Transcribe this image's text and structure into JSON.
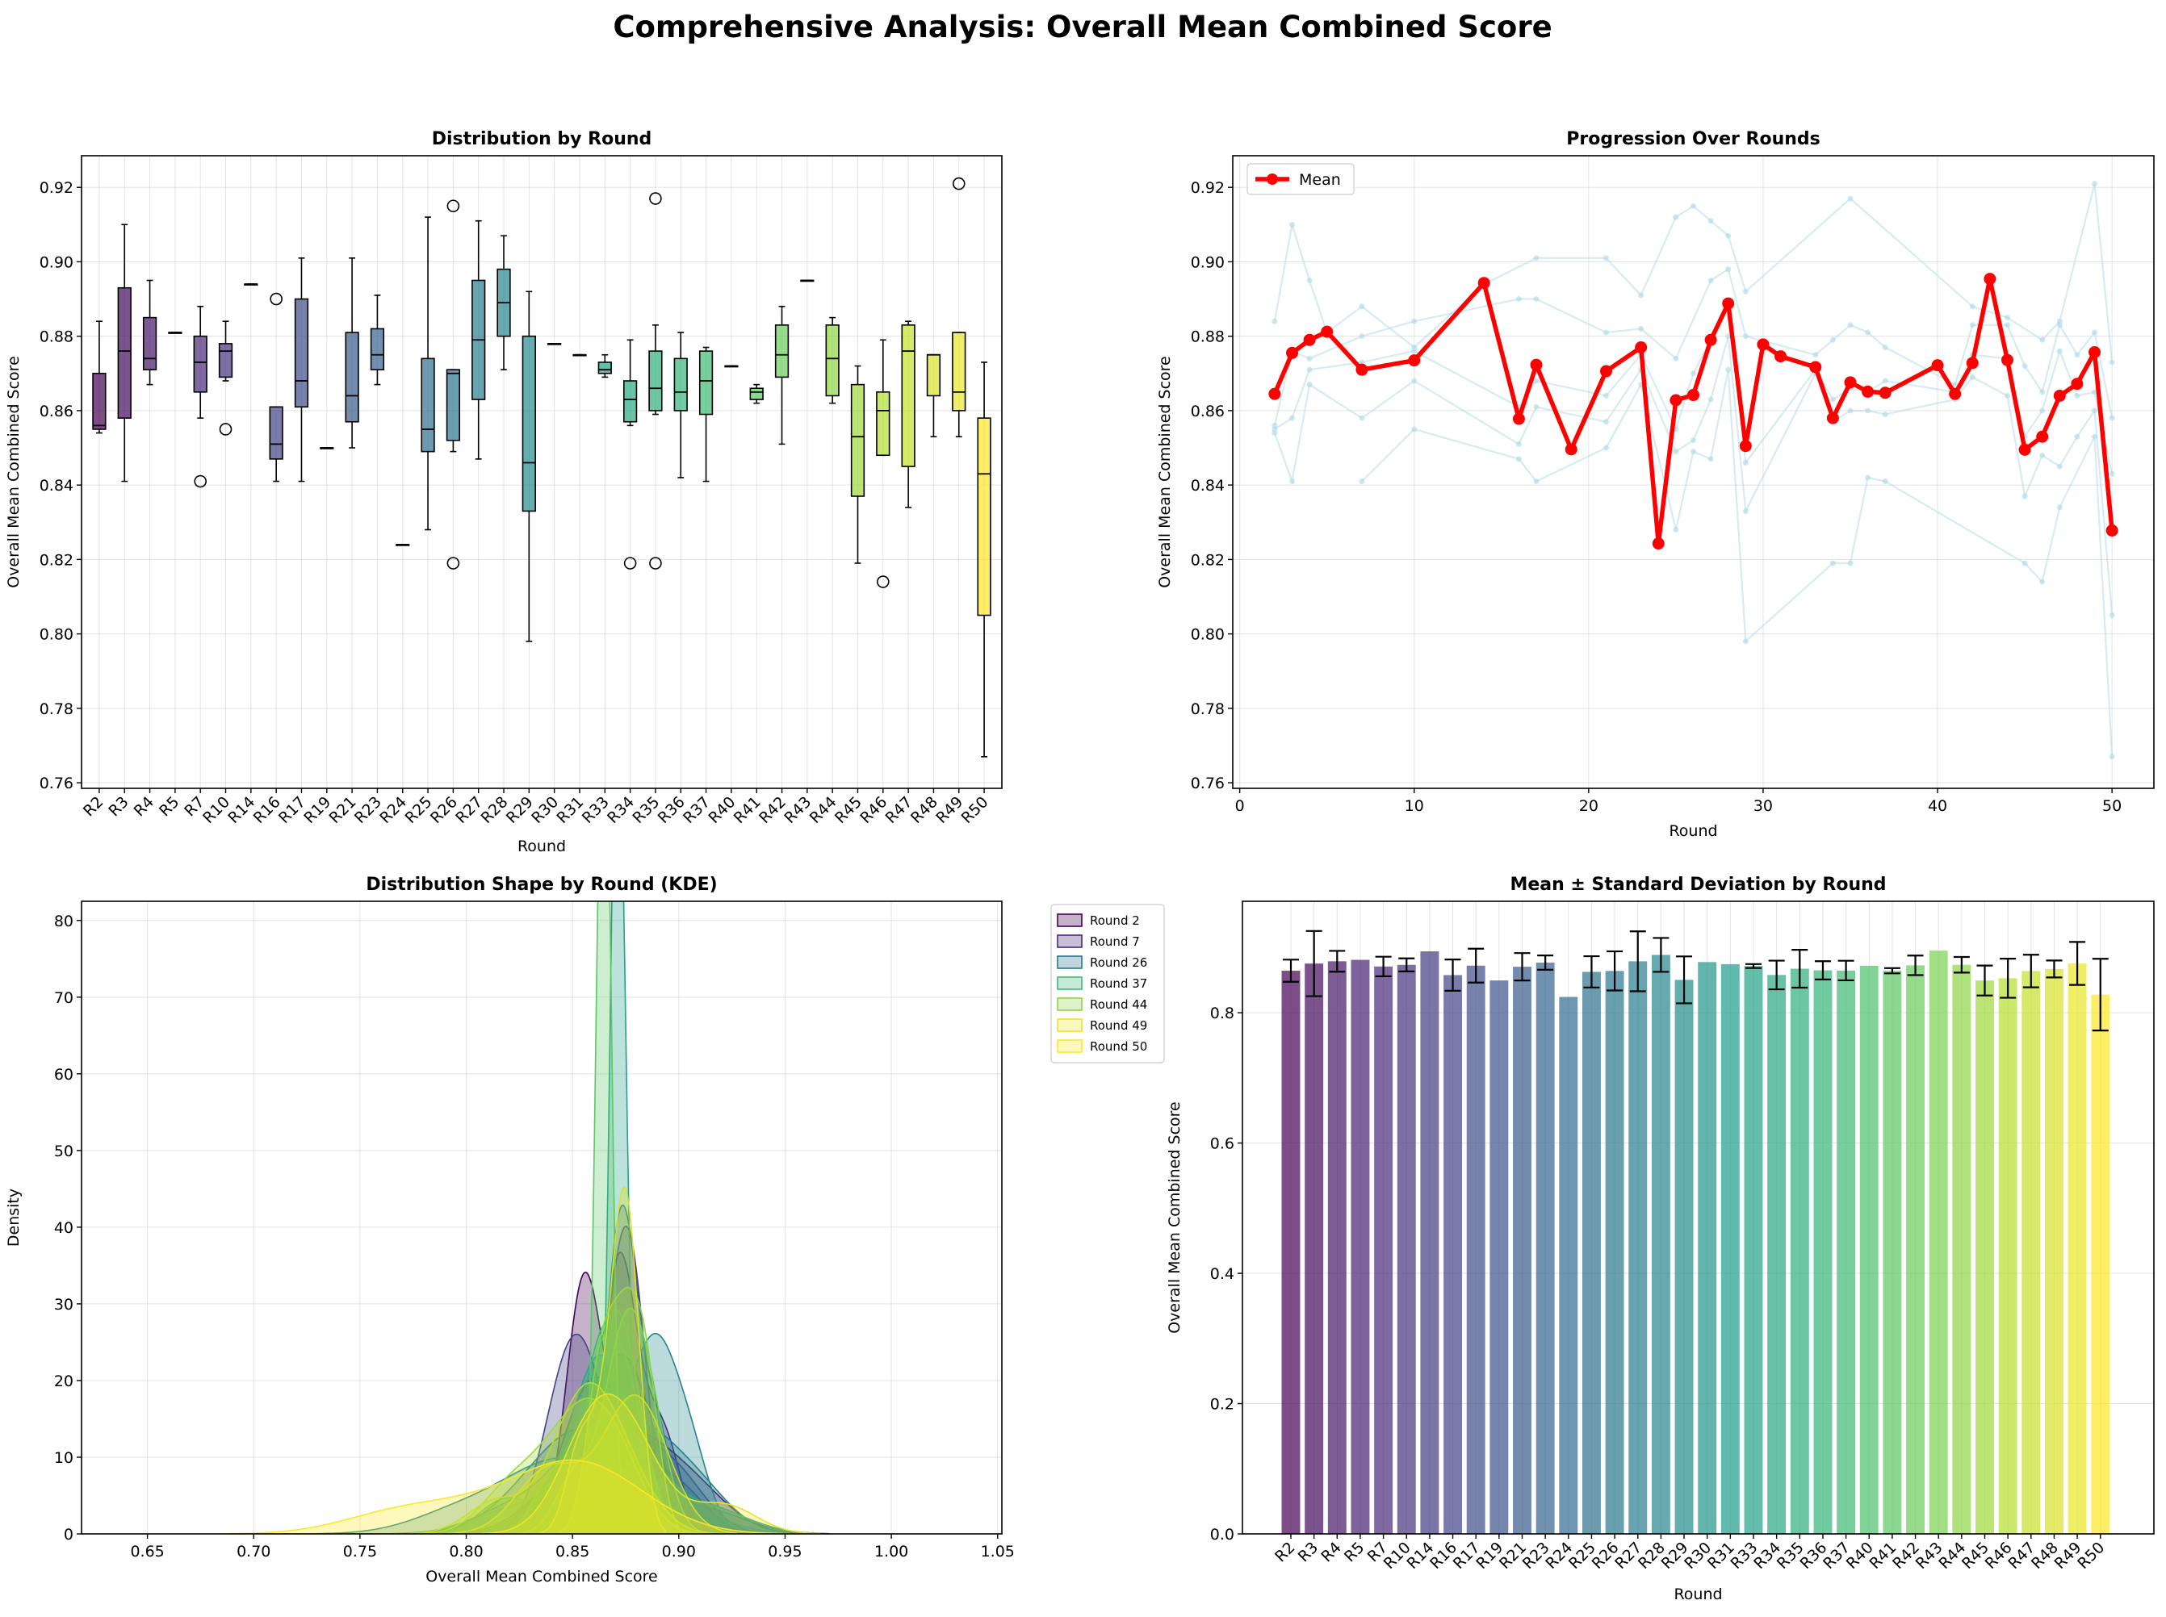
{
  "suptitle": "Comprehensive Analysis: Overall Mean Combined Score",
  "chart_data": [
    {
      "type": "box",
      "title": "Distribution by Round",
      "xlabel": "Round",
      "ylabel": "Overall Mean Combined Score",
      "ylim": [
        0.7585,
        0.9285
      ],
      "yticks": [
        "0.76",
        "0.78",
        "0.80",
        "0.82",
        "0.84",
        "0.86",
        "0.88",
        "0.90",
        "0.92"
      ],
      "grid": true,
      "categories": [
        "R2",
        "R3",
        "R4",
        "R5",
        "R7",
        "R10",
        "R14",
        "R16",
        "R17",
        "R19",
        "R21",
        "R23",
        "R24",
        "R25",
        "R26",
        "R27",
        "R28",
        "R29",
        "R30",
        "R31",
        "R33",
        "R34",
        "R35",
        "R36",
        "R37",
        "R40",
        "R41",
        "R42",
        "R43",
        "R44",
        "R45",
        "R46",
        "R47",
        "R48",
        "R49",
        "R50"
      ],
      "boxes": [
        {
          "min": 0.854,
          "q1": 0.855,
          "med": 0.856,
          "q3": 0.87,
          "max": 0.884,
          "outliers": []
        },
        {
          "min": 0.841,
          "q1": 0.858,
          "med": 0.876,
          "q3": 0.893,
          "max": 0.91,
          "outliers": []
        },
        {
          "min": 0.867,
          "q1": 0.871,
          "med": 0.874,
          "q3": 0.885,
          "max": 0.895,
          "outliers": []
        },
        {
          "min": 0.881,
          "q1": 0.881,
          "med": 0.881,
          "q3": 0.881,
          "max": 0.881,
          "outliers": []
        },
        {
          "min": 0.858,
          "q1": 0.865,
          "med": 0.873,
          "q3": 0.88,
          "max": 0.888,
          "outliers": [
            0.841
          ]
        },
        {
          "min": 0.868,
          "q1": 0.869,
          "med": 0.876,
          "q3": 0.878,
          "max": 0.884,
          "outliers": [
            0.855
          ]
        },
        {
          "min": 0.894,
          "q1": 0.894,
          "med": 0.894,
          "q3": 0.894,
          "max": 0.894,
          "outliers": []
        },
        {
          "min": 0.841,
          "q1": 0.847,
          "med": 0.851,
          "q3": 0.861,
          "max": 0.861,
          "outliers": [
            0.89
          ]
        },
        {
          "min": 0.841,
          "q1": 0.861,
          "med": 0.868,
          "q3": 0.89,
          "max": 0.901,
          "outliers": []
        },
        {
          "min": 0.85,
          "q1": 0.85,
          "med": 0.85,
          "q3": 0.85,
          "max": 0.85,
          "outliers": []
        },
        {
          "min": 0.85,
          "q1": 0.857,
          "med": 0.864,
          "q3": 0.881,
          "max": 0.901,
          "outliers": []
        },
        {
          "min": 0.867,
          "q1": 0.871,
          "med": 0.875,
          "q3": 0.882,
          "max": 0.891,
          "outliers": []
        },
        {
          "min": 0.824,
          "q1": 0.824,
          "med": 0.824,
          "q3": 0.824,
          "max": 0.824,
          "outliers": []
        },
        {
          "min": 0.828,
          "q1": 0.849,
          "med": 0.855,
          "q3": 0.874,
          "max": 0.912,
          "outliers": []
        },
        {
          "min": 0.849,
          "q1": 0.852,
          "med": 0.87,
          "q3": 0.871,
          "max": 0.871,
          "outliers": [
            0.915,
            0.819
          ]
        },
        {
          "min": 0.847,
          "q1": 0.863,
          "med": 0.879,
          "q3": 0.895,
          "max": 0.911,
          "outliers": []
        },
        {
          "min": 0.871,
          "q1": 0.88,
          "med": 0.889,
          "q3": 0.898,
          "max": 0.907,
          "outliers": []
        },
        {
          "min": 0.798,
          "q1": 0.833,
          "med": 0.846,
          "q3": 0.88,
          "max": 0.892,
          "outliers": []
        },
        {
          "min": 0.878,
          "q1": 0.878,
          "med": 0.878,
          "q3": 0.878,
          "max": 0.878,
          "outliers": []
        },
        {
          "min": 0.875,
          "q1": 0.875,
          "med": 0.875,
          "q3": 0.875,
          "max": 0.875,
          "outliers": []
        },
        {
          "min": 0.869,
          "q1": 0.87,
          "med": 0.871,
          "q3": 0.873,
          "max": 0.875,
          "outliers": []
        },
        {
          "min": 0.856,
          "q1": 0.857,
          "med": 0.863,
          "q3": 0.868,
          "max": 0.879,
          "outliers": [
            0.819
          ]
        },
        {
          "min": 0.859,
          "q1": 0.86,
          "med": 0.866,
          "q3": 0.876,
          "max": 0.883,
          "outliers": [
            0.917,
            0.819
          ]
        },
        {
          "min": 0.842,
          "q1": 0.86,
          "med": 0.865,
          "q3": 0.874,
          "max": 0.881,
          "outliers": []
        },
        {
          "min": 0.841,
          "q1": 0.859,
          "med": 0.868,
          "q3": 0.876,
          "max": 0.877,
          "outliers": []
        },
        {
          "min": 0.872,
          "q1": 0.872,
          "med": 0.872,
          "q3": 0.872,
          "max": 0.872,
          "outliers": []
        },
        {
          "min": 0.862,
          "q1": 0.863,
          "med": 0.865,
          "q3": 0.866,
          "max": 0.867,
          "outliers": []
        },
        {
          "min": 0.851,
          "q1": 0.869,
          "med": 0.875,
          "q3": 0.883,
          "max": 0.888,
          "outliers": []
        },
        {
          "min": 0.895,
          "q1": 0.895,
          "med": 0.895,
          "q3": 0.895,
          "max": 0.895,
          "outliers": []
        },
        {
          "min": 0.862,
          "q1": 0.864,
          "med": 0.874,
          "q3": 0.883,
          "max": 0.885,
          "outliers": []
        },
        {
          "min": 0.819,
          "q1": 0.837,
          "med": 0.853,
          "q3": 0.867,
          "max": 0.872,
          "outliers": []
        },
        {
          "min": 0.848,
          "q1": 0.848,
          "med": 0.86,
          "q3": 0.865,
          "max": 0.879,
          "outliers": [
            0.814
          ]
        },
        {
          "min": 0.834,
          "q1": 0.845,
          "med": 0.876,
          "q3": 0.883,
          "max": 0.884,
          "outliers": []
        },
        {
          "min": 0.853,
          "q1": 0.864,
          "med": 0.875,
          "q3": 0.875,
          "max": 0.875,
          "outliers": []
        },
        {
          "min": 0.853,
          "q1": 0.86,
          "med": 0.865,
          "q3": 0.881,
          "max": 0.881,
          "outliers": [
            0.921
          ]
        },
        {
          "min": 0.767,
          "q1": 0.805,
          "med": 0.843,
          "q3": 0.858,
          "max": 0.873,
          "outliers": []
        }
      ]
    },
    {
      "type": "line",
      "title": "Progression Over Rounds",
      "xlabel": "Round",
      "ylabel": "Overall Mean Combined Score",
      "xlim": [
        -0.4,
        52.4
      ],
      "ylim": [
        0.7585,
        0.9285
      ],
      "xticks": [
        "0",
        "10",
        "20",
        "30",
        "40",
        "50"
      ],
      "yticks": [
        "0.76",
        "0.78",
        "0.80",
        "0.82",
        "0.84",
        "0.86",
        "0.88",
        "0.90",
        "0.92"
      ],
      "legend": "upper-left",
      "grid": true,
      "series": [
        {
          "name": "Mean",
          "x": [
            2,
            3,
            4,
            5,
            7,
            10,
            14,
            16,
            17,
            19,
            21,
            23,
            24,
            25,
            26,
            27,
            28,
            29,
            30,
            31,
            33,
            34,
            35,
            36,
            37,
            40,
            41,
            42,
            43,
            44,
            45,
            46,
            47,
            48,
            49,
            50
          ],
          "y": [
            0.8645,
            0.8755,
            0.879,
            0.8812,
            0.871,
            0.8735,
            0.8943,
            0.8578,
            0.8723,
            0.8496,
            0.8706,
            0.877,
            0.8243,
            0.8628,
            0.8642,
            0.879,
            0.8888,
            0.8505,
            0.8778,
            0.8746,
            0.8717,
            0.858,
            0.8676,
            0.8651,
            0.8648,
            0.8722,
            0.8645,
            0.8728,
            0.8954,
            0.8736,
            0.8495,
            0.853,
            0.864,
            0.8672,
            0.8757,
            0.8278
          ]
        }
      ],
      "trajectories": [
        [
          [
            2,
            0.884
          ],
          [
            3,
            0.91
          ],
          [
            4,
            0.895
          ],
          [
            5,
            0.881
          ],
          [
            7,
            0.888
          ],
          [
            10,
            0.877
          ],
          [
            14,
            0.894
          ],
          [
            17,
            0.901
          ],
          [
            21,
            0.901
          ],
          [
            23,
            0.891
          ],
          [
            25,
            0.912
          ],
          [
            26,
            0.915
          ],
          [
            27,
            0.911
          ],
          [
            28,
            0.907
          ],
          [
            29,
            0.892
          ],
          [
            35,
            0.917
          ],
          [
            42,
            0.888
          ],
          [
            44,
            0.885
          ],
          [
            46,
            0.879
          ],
          [
            47,
            0.884
          ],
          [
            49,
            0.921
          ],
          [
            50,
            0.873
          ]
        ],
        [
          [
            2,
            0.856
          ],
          [
            3,
            0.876
          ],
          [
            4,
            0.874
          ],
          [
            7,
            0.88
          ],
          [
            10,
            0.884
          ],
          [
            16,
            0.89
          ],
          [
            17,
            0.89
          ],
          [
            21,
            0.881
          ],
          [
            23,
            0.882
          ],
          [
            25,
            0.874
          ],
          [
            27,
            0.895
          ],
          [
            28,
            0.898
          ],
          [
            29,
            0.88
          ],
          [
            33,
            0.875
          ],
          [
            34,
            0.879
          ],
          [
            35,
            0.883
          ],
          [
            36,
            0.881
          ],
          [
            37,
            0.877
          ],
          [
            41,
            0.867
          ],
          [
            42,
            0.883
          ],
          [
            44,
            0.883
          ],
          [
            45,
            0.872
          ],
          [
            46,
            0.865
          ],
          [
            47,
            0.883
          ],
          [
            48,
            0.875
          ],
          [
            49,
            0.881
          ],
          [
            50,
            0.858
          ]
        ],
        [
          [
            2,
            0.855
          ],
          [
            3,
            0.858
          ],
          [
            4,
            0.871
          ],
          [
            7,
            0.873
          ],
          [
            10,
            0.876
          ],
          [
            16,
            0.861
          ],
          [
            17,
            0.868
          ],
          [
            21,
            0.864
          ],
          [
            23,
            0.875
          ],
          [
            25,
            0.855
          ],
          [
            26,
            0.87
          ],
          [
            27,
            0.879
          ],
          [
            28,
            0.889
          ],
          [
            29,
            0.846
          ],
          [
            33,
            0.871
          ],
          [
            34,
            0.863
          ],
          [
            35,
            0.866
          ],
          [
            36,
            0.865
          ],
          [
            37,
            0.868
          ],
          [
            41,
            0.865
          ],
          [
            42,
            0.875
          ],
          [
            44,
            0.874
          ],
          [
            45,
            0.853
          ],
          [
            46,
            0.86
          ],
          [
            47,
            0.876
          ],
          [
            48,
            0.864
          ],
          [
            49,
            0.865
          ],
          [
            50,
            0.843
          ]
        ],
        [
          [
            2,
            0.854
          ],
          [
            3,
            0.841
          ],
          [
            4,
            0.867
          ],
          [
            7,
            0.858
          ],
          [
            10,
            0.868
          ],
          [
            16,
            0.851
          ],
          [
            17,
            0.861
          ],
          [
            21,
            0.857
          ],
          [
            23,
            0.871
          ],
          [
            25,
            0.849
          ],
          [
            26,
            0.852
          ],
          [
            27,
            0.863
          ],
          [
            28,
            0.88
          ],
          [
            29,
            0.833
          ],
          [
            33,
            0.87
          ],
          [
            34,
            0.857
          ],
          [
            35,
            0.86
          ],
          [
            36,
            0.86
          ],
          [
            37,
            0.859
          ],
          [
            41,
            0.863
          ],
          [
            42,
            0.869
          ],
          [
            44,
            0.864
          ],
          [
            45,
            0.837
          ],
          [
            46,
            0.848
          ],
          [
            47,
            0.845
          ],
          [
            48,
            0.853
          ],
          [
            49,
            0.86
          ],
          [
            50,
            0.805
          ]
        ],
        [
          [
            7,
            0.841
          ],
          [
            10,
            0.855
          ],
          [
            16,
            0.847
          ],
          [
            17,
            0.841
          ],
          [
            21,
            0.85
          ],
          [
            23,
            0.867
          ],
          [
            25,
            0.828
          ],
          [
            26,
            0.849
          ],
          [
            27,
            0.847
          ],
          [
            28,
            0.871
          ],
          [
            29,
            0.798
          ],
          [
            34,
            0.819
          ],
          [
            35,
            0.819
          ],
          [
            36,
            0.842
          ],
          [
            37,
            0.841
          ],
          [
            45,
            0.819
          ],
          [
            46,
            0.814
          ],
          [
            47,
            0.834
          ],
          [
            49,
            0.853
          ],
          [
            50,
            0.767
          ]
        ]
      ]
    },
    {
      "type": "kde",
      "title": "Distribution Shape by Round (KDE)",
      "xlabel": "Overall Mean Combined Score",
      "ylabel": "Density",
      "xlim": [
        0.619,
        1.052
      ],
      "ylim": [
        0,
        82.5
      ],
      "xticks": [
        "0.65",
        "0.70",
        "0.75",
        "0.80",
        "0.85",
        "0.90",
        "0.95",
        "1.00",
        "1.05"
      ],
      "yticks": [
        "0",
        "10",
        "20",
        "30",
        "40",
        "50",
        "60",
        "70",
        "80"
      ],
      "legend": "outside-right",
      "legend_entries": [
        "Round 2",
        "Round 7",
        "Round 26",
        "Round 37",
        "Round 44",
        "Round 49",
        "Round 50"
      ],
      "grid": true
    },
    {
      "type": "bar",
      "title": "Mean ± Standard Deviation by Round",
      "xlabel": "Round",
      "ylabel": "Overall Mean Combined Score",
      "ylim": [
        0,
        0.9711
      ],
      "yticks": [
        "0.0",
        "0.2",
        "0.4",
        "0.6",
        "0.8"
      ],
      "grid": true,
      "categories": [
        "R2",
        "R3",
        "R4",
        "R5",
        "R7",
        "R10",
        "R14",
        "R16",
        "R17",
        "R19",
        "R21",
        "R23",
        "R24",
        "R25",
        "R26",
        "R27",
        "R28",
        "R29",
        "R30",
        "R31",
        "R33",
        "R34",
        "R35",
        "R36",
        "R37",
        "R40",
        "R41",
        "R42",
        "R43",
        "R44",
        "R45",
        "R46",
        "R47",
        "R48",
        "R49",
        "R50"
      ],
      "values": [
        0.8645,
        0.8755,
        0.879,
        0.8812,
        0.871,
        0.8735,
        0.8943,
        0.8578,
        0.8723,
        0.8496,
        0.8706,
        0.877,
        0.8243,
        0.8628,
        0.8642,
        0.879,
        0.8888,
        0.8505,
        0.8778,
        0.8746,
        0.8717,
        0.858,
        0.8676,
        0.8651,
        0.8648,
        0.8722,
        0.8645,
        0.8728,
        0.8954,
        0.8736,
        0.8495,
        0.853,
        0.864,
        0.8672,
        0.8757,
        0.8278
      ],
      "std": [
        0.017,
        0.05,
        0.016,
        0,
        0.015,
        0.01,
        0,
        0.024,
        0.026,
        0,
        0.021,
        0.011,
        0,
        0.024,
        0.03,
        0.046,
        0.026,
        0.036,
        0,
        0,
        0.003,
        0.022,
        0.029,
        0.014,
        0.015,
        0,
        0.004,
        0.015,
        0,
        0.012,
        0.023,
        0.03,
        0.025,
        0.013,
        0.033,
        0.055
      ]
    }
  ]
}
